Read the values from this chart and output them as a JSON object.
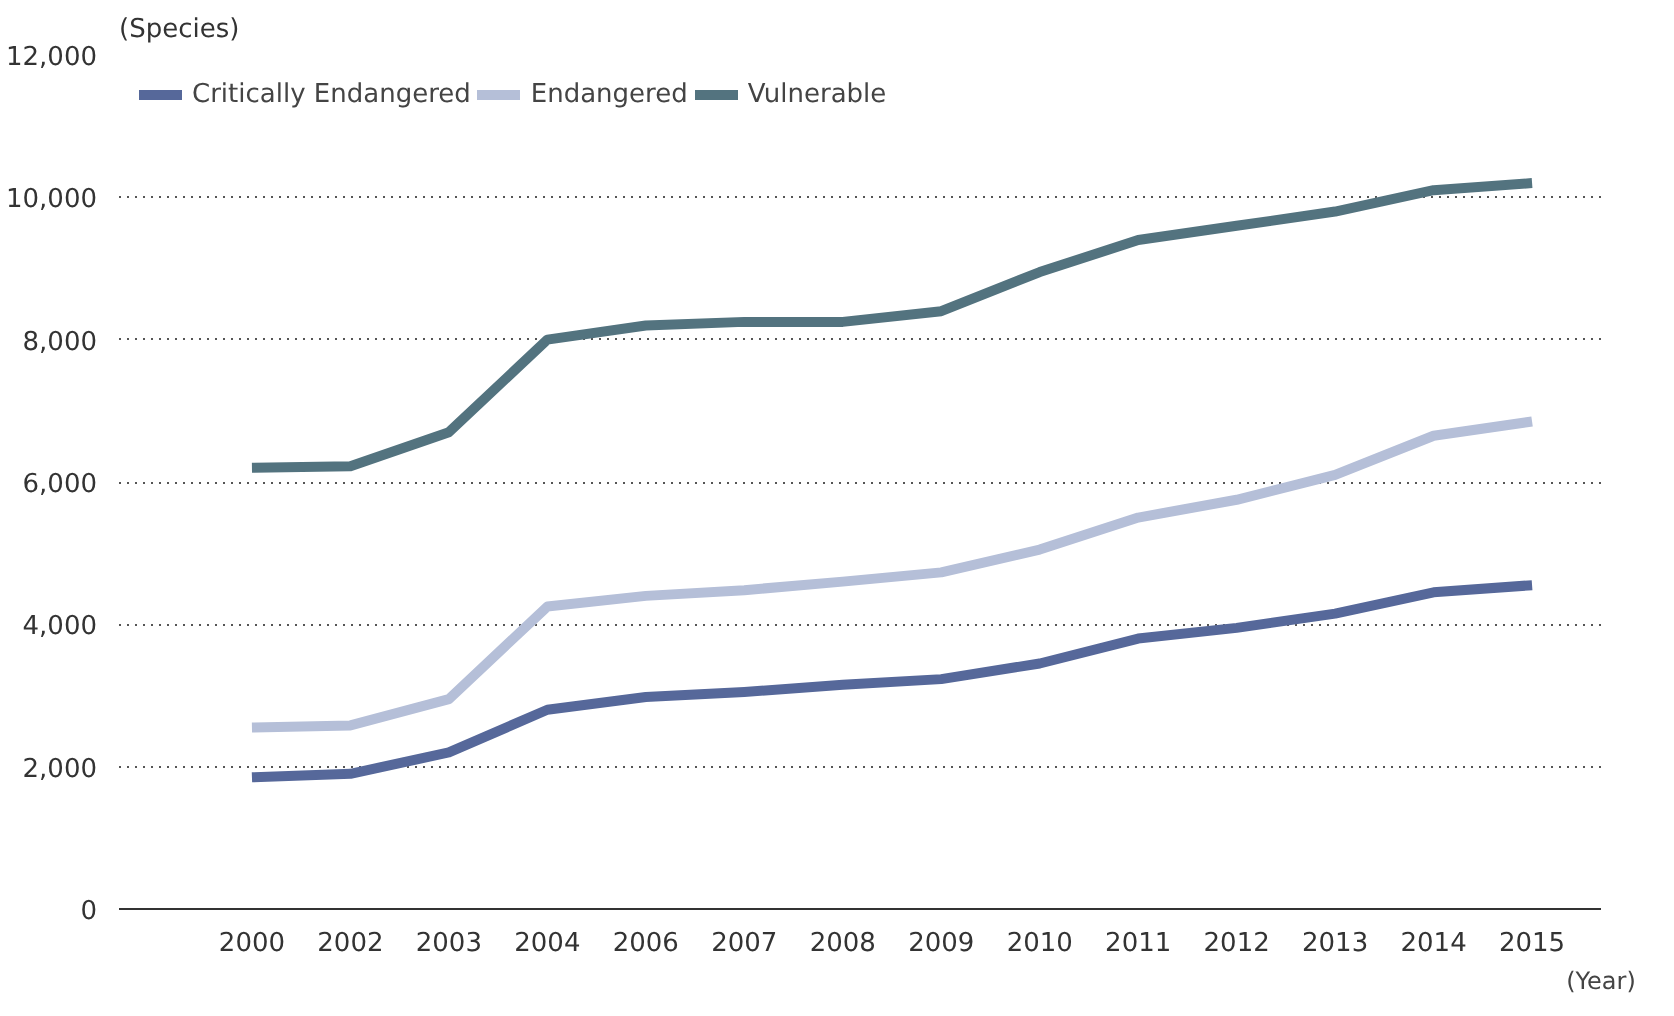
{
  "chart_data": {
    "type": "line",
    "categories": [
      "2000",
      "2002",
      "2003",
      "2004",
      "2006",
      "2007",
      "2008",
      "2009",
      "2010",
      "2011",
      "2012",
      "2013",
      "2014",
      "2015"
    ],
    "series": [
      {
        "name": "Critically Endangered",
        "color": "#56689a",
        "values": [
          1850,
          1900,
          2200,
          2800,
          2980,
          3050,
          3150,
          3230,
          3450,
          3800,
          3950,
          4150,
          4450,
          4550
        ]
      },
      {
        "name": "Endangered",
        "color": "#b5bfd8",
        "values": [
          2550,
          2580,
          2950,
          4250,
          4400,
          4480,
          4600,
          4730,
          5050,
          5500,
          5750,
          6100,
          6650,
          6850
        ]
      },
      {
        "name": "Vulnerable",
        "color": "#53737f",
        "values": [
          6200,
          6220,
          6700,
          8000,
          8200,
          8250,
          8250,
          8400,
          8950,
          9400,
          9600,
          9800,
          10100,
          10200
        ]
      }
    ],
    "ylabel": "(Species)",
    "xlabel": "(Year)",
    "ylim": [
      0,
      12000
    ],
    "yticks": [
      {
        "value": 0,
        "label": "0"
      },
      {
        "value": 2000,
        "label": "2,000"
      },
      {
        "value": 4000,
        "label": "4,000"
      },
      {
        "value": 6000,
        "label": "6,000"
      },
      {
        "value": 8000,
        "label": "8,000"
      },
      {
        "value": 10000,
        "label": "10,000"
      },
      {
        "value": 12000,
        "label": "12,000"
      }
    ],
    "grid": "y",
    "legend": "top left",
    "marker": "none",
    "line_style": "solid"
  }
}
